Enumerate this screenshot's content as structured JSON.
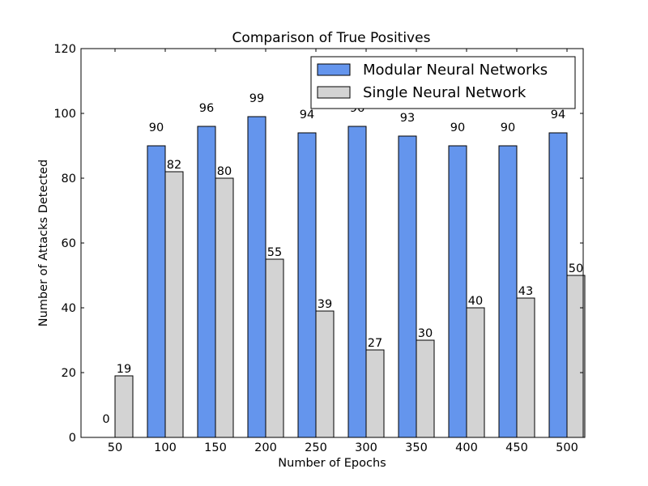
{
  "chart_data": {
    "type": "bar",
    "title": "Comparison of True Positives",
    "xlabel": "Number of Epochs",
    "ylabel": "Number of Attacks Detected",
    "categories": [
      "50",
      "100",
      "150",
      "200",
      "250",
      "300",
      "350",
      "400",
      "450",
      "500"
    ],
    "ylim": [
      0,
      120
    ],
    "yticks": [
      0,
      20,
      40,
      60,
      80,
      100,
      120
    ],
    "grid": false,
    "legend_position": "top-right",
    "series": [
      {
        "name": "Modular Neural Networks",
        "color": "#6495ed",
        "values": [
          0,
          90,
          96,
          99,
          94,
          96,
          93,
          90,
          90,
          94
        ]
      },
      {
        "name": "Single Neural Network",
        "color": "#d3d3d3",
        "values": [
          19,
          82,
          80,
          55,
          39,
          27,
          30,
          40,
          43,
          50
        ]
      }
    ]
  }
}
